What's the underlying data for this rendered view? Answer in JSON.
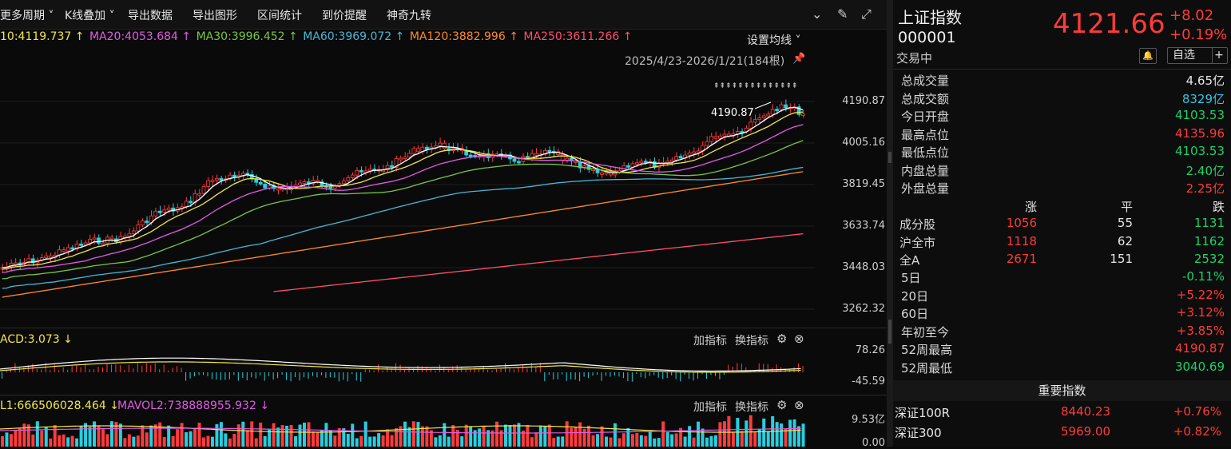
{
  "toolbar": {
    "items": [
      "更多周期 ˅",
      "K线叠加 ˅",
      "导出数据",
      "导出图形",
      "区间统计",
      "到价提醒",
      "神奇九转"
    ]
  },
  "ma_line": {
    "ma10": "10:4119.737 ↑",
    "ma20": "MA20:4053.684 ↑",
    "ma30": "MA30:3996.452 ↑",
    "ma60": "MA60:3969.072 ↑",
    "ma120": "MA120:3882.996 ↑",
    "ma250": "MA250:3611.266 ↑",
    "set_ma": "设置均线 ˅",
    "range": "2025/4/23-2026/1/21(184根)"
  },
  "colors": {
    "up": "#ff3b3b",
    "down": "#25d0e0",
    "ma10": "#ffffff",
    "ma20": "#e15be6",
    "ma30": "#7cc544",
    "ma60": "#46b8d8",
    "ma120": "#ff8a2a",
    "ma250": "#ff4f6e"
  },
  "y_axis": [
    "4190.87",
    "4005.16",
    "3819.45",
    "3633.74",
    "3448.03",
    "3262.32"
  ],
  "high_marker": "4190.87",
  "macd": {
    "label": "ACD:3.073 ↓",
    "top": "78.26",
    "bottom": "-45.59",
    "add": "加指标",
    "swap": "换指标"
  },
  "vol": {
    "label1": "L1:666506028.464 ↓",
    "label2": "MAVOL2:738888955.932 ↓",
    "top": "9.53亿",
    "bottom": "0.00",
    "add": "加指标",
    "swap": "换指标"
  },
  "panel": {
    "name": "上证指数",
    "code": "000001",
    "price": "4121.66",
    "change": "+8.02",
    "pct": "+0.19%",
    "status": "交易中",
    "fav": "自选",
    "fav_plus": "+",
    "stats": [
      {
        "k": "总成交量",
        "v": "4.65亿",
        "c": "white"
      },
      {
        "k": "总成交额",
        "v": "8329亿",
        "c": "cyan"
      },
      {
        "k": "今日开盘",
        "v": "4103.53",
        "c": "green"
      },
      {
        "k": "最高点位",
        "v": "4135.96",
        "c": "red"
      },
      {
        "k": "最低点位",
        "v": "4103.53",
        "c": "green"
      },
      {
        "k": "内盘总量",
        "v": "2.40亿",
        "c": "green"
      },
      {
        "k": "外盘总量",
        "v": "2.25亿",
        "c": "red"
      }
    ],
    "breadth_head": {
      "up": "涨",
      "flat": "平",
      "down": "跌"
    },
    "breadth": [
      {
        "k": "成分股",
        "up": "1056",
        "flat": "55",
        "down": "1131"
      },
      {
        "k": "沪全市",
        "up": "1118",
        "flat": "62",
        "down": "1162"
      },
      {
        "k": "全A",
        "up": "2671",
        "flat": "151",
        "down": "2532"
      }
    ],
    "periods": [
      {
        "k": "5日",
        "v": "-0.11%",
        "c": "green"
      },
      {
        "k": "20日",
        "v": "+5.22%",
        "c": "red"
      },
      {
        "k": "60日",
        "v": "+3.12%",
        "c": "red"
      },
      {
        "k": "年初至今",
        "v": "+3.85%",
        "c": "red"
      },
      {
        "k": "52周最高",
        "v": "4190.87",
        "c": "red"
      },
      {
        "k": "52周最低",
        "v": "3040.69",
        "c": "green"
      }
    ],
    "important_title": "重要指数",
    "important": [
      {
        "n": "深证100R",
        "p": "8440.23",
        "c": "+0.76%"
      },
      {
        "n": "深证300",
        "p": "5969.00",
        "c": "+0.82%"
      }
    ]
  }
}
